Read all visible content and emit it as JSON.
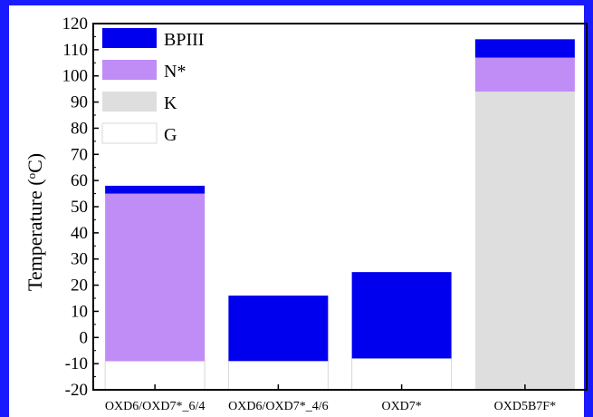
{
  "chart_data": {
    "type": "bar",
    "stacked": true,
    "categories": [
      "OXD6/OXD7*_6/4",
      "OXD6/OXD7*_4/6",
      "OXD7*",
      "OXD5B7F*"
    ],
    "series": [
      {
        "name": "G",
        "color": "#ffffff",
        "ranges": [
          [
            -20,
            -9
          ],
          [
            -20,
            -9
          ],
          [
            -20,
            -8
          ],
          [
            -20,
            -20
          ]
        ]
      },
      {
        "name": "K",
        "color": "#dedede",
        "ranges": [
          [
            -9,
            -9
          ],
          [
            -9,
            -9
          ],
          [
            -8,
            -8
          ],
          [
            -20,
            94
          ]
        ]
      },
      {
        "name": "N*",
        "color": "#c08cf5",
        "ranges": [
          [
            -9,
            55
          ],
          [
            -9,
            -9
          ],
          [
            -8,
            -8
          ],
          [
            94,
            107
          ]
        ]
      },
      {
        "name": "BPIII",
        "color": "#0000ee",
        "ranges": [
          [
            55,
            58
          ],
          [
            -9,
            16
          ],
          [
            -8,
            25
          ],
          [
            107,
            114
          ]
        ]
      }
    ],
    "legend_order": [
      "BPIII",
      "N*",
      "K",
      "G"
    ],
    "legend_position": "top-left",
    "ylabel": "Temperature (°C)",
    "ylabel_main": "Temperature (",
    "ylabel_sup": "o",
    "ylabel_end": "C)",
    "ylim": [
      -20,
      120
    ],
    "yticks": [
      -20,
      -10,
      0,
      10,
      20,
      30,
      40,
      50,
      60,
      70,
      80,
      90,
      100,
      110,
      120
    ]
  }
}
